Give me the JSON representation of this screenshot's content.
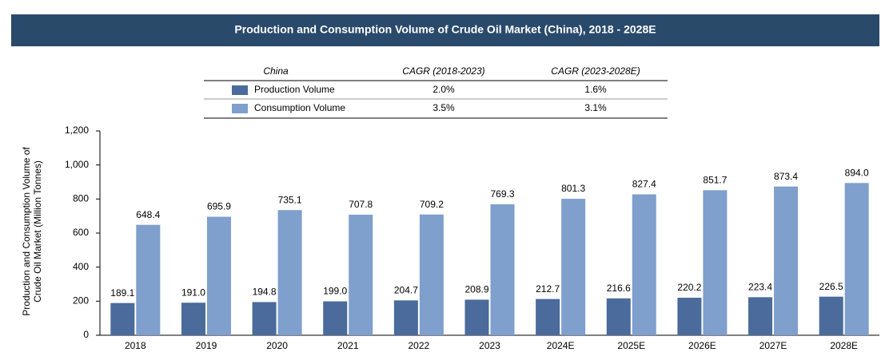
{
  "chart_data": {
    "type": "bar",
    "title": "Production and Consumption Volume of Crude Oil Market (China), 2018 - 2028E",
    "ylabel": [
      "Production and Consumption Volume of",
      "Crude Oil Market (Million Tonnes)"
    ],
    "table_header": [
      "China",
      "CAGR (2018-2023)",
      "CAGR (2023-2028E)"
    ],
    "categories": [
      "2018",
      "2019",
      "2020",
      "2021",
      "2022",
      "2023",
      "2024E",
      "2025E",
      "2026E",
      "2027E",
      "2028E"
    ],
    "series": [
      {
        "name": "Production Volume",
        "color": "#4a6b9b",
        "cagr": [
          "2.0%",
          "1.6%"
        ],
        "values": [
          189.1,
          191.0,
          194.8,
          199.0,
          204.7,
          208.9,
          212.7,
          216.6,
          220.2,
          223.4,
          226.5
        ],
        "value_labels": [
          "189.1",
          "191.0",
          "194.8",
          "199.0",
          "204.7",
          "208.9",
          "212.7",
          "216.6",
          "220.2",
          "223.4",
          "226.5"
        ]
      },
      {
        "name": "Consumption Volume",
        "color": "#7f9fcc",
        "cagr": [
          "3.5%",
          "3.1%"
        ],
        "values": [
          648.4,
          695.9,
          735.1,
          707.8,
          709.2,
          769.3,
          801.3,
          827.4,
          851.7,
          873.4,
          894.0
        ],
        "value_labels": [
          "648.4",
          "695.9",
          "735.1",
          "707.8",
          "709.2",
          "769.3",
          "801.3",
          "827.4",
          "851.7",
          "873.4",
          "894.0"
        ]
      }
    ],
    "ylim": [
      0,
      1200
    ],
    "yticks": [
      0,
      200,
      400,
      600,
      800,
      {
        "value": 1000,
        "label": "1,000"
      },
      {
        "value": 1200,
        "label": "1,200"
      }
    ]
  }
}
